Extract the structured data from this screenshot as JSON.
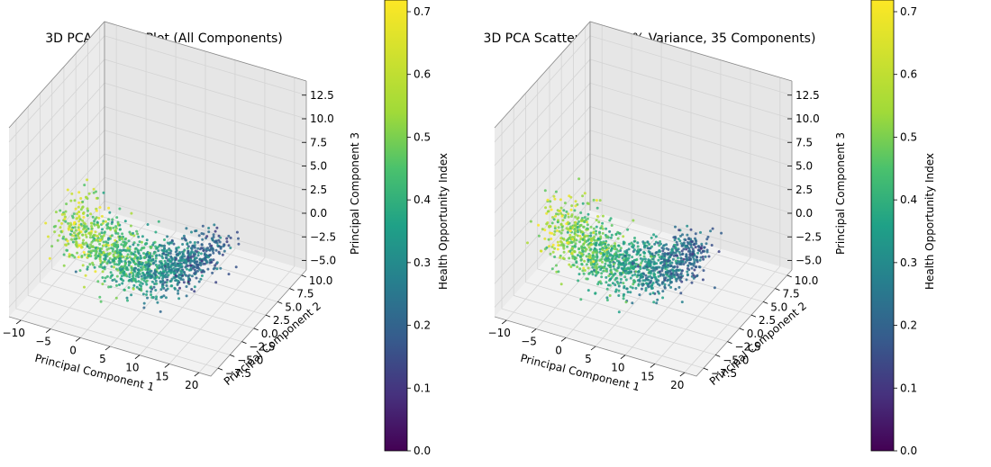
{
  "chart_data": [
    {
      "type": "scatter",
      "title": "3D PCA Scatter Plot (All Components)",
      "xlabel": "Principal Component 1",
      "ylabel": "Principal Component 2",
      "zlabel": "Principal Component 3",
      "xlim": [
        -12,
        22
      ],
      "ylim": [
        -9,
        11
      ],
      "zlim": [
        -6,
        14
      ],
      "x_ticks": [
        "−10",
        "−5",
        "0",
        "5",
        "10",
        "15",
        "20"
      ],
      "y_ticks": [
        "−7.5",
        "−5.0",
        "−2.5",
        "0.0",
        "2.5",
        "5.0",
        "7.5",
        "10.0"
      ],
      "z_ticks": [
        "−5.0",
        "−2.5",
        "0.0",
        "2.5",
        "5.0",
        "7.5",
        "10.0",
        "12.5"
      ],
      "grid": true,
      "colorbar": {
        "label": "Health Opportunity Index",
        "colormap": "viridis",
        "range": [
          0.0,
          0.7
        ],
        "ticks": [
          "0.0",
          "0.1",
          "0.2",
          "0.3",
          "0.4",
          "0.5",
          "0.6",
          "0.7"
        ]
      }
    },
    {
      "type": "scatter",
      "title": "3D PCA Scatter Plot (99% Variance, 35 Components)",
      "xlabel": "Principal Component 1",
      "ylabel": "Principal Component 2",
      "zlabel": "Principal Component 3",
      "xlim": [
        -12,
        22
      ],
      "ylim": [
        -9,
        11
      ],
      "zlim": [
        -6,
        14
      ],
      "x_ticks": [
        "−10",
        "−5",
        "0",
        "5",
        "10",
        "15",
        "20"
      ],
      "y_ticks": [
        "−7.5",
        "−5.0",
        "−2.5",
        "0.0",
        "2.5",
        "5.0",
        "7.5",
        "10.0"
      ],
      "z_ticks": [
        "−5.0",
        "−2.5",
        "0.0",
        "2.5",
        "5.0",
        "7.5",
        "10.0",
        "12.5"
      ],
      "grid": true,
      "colorbar": {
        "label": "Health Opportunity Index",
        "colormap": "viridis",
        "range": [
          0.0,
          0.7
        ],
        "ticks": [
          "0.0",
          "0.1",
          "0.2",
          "0.3",
          "0.4",
          "0.5",
          "0.6",
          "0.7"
        ]
      }
    }
  ]
}
